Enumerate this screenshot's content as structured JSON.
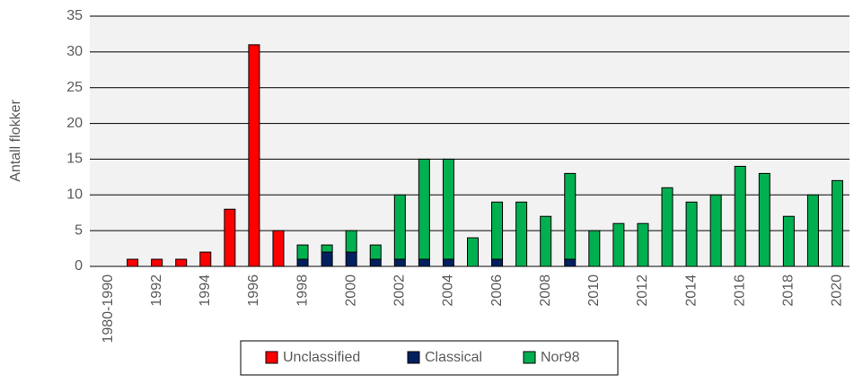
{
  "chart_data": {
    "type": "stacked_bar",
    "y_label": "Antall flokker",
    "categories": [
      "1980-1990",
      null,
      "1992",
      null,
      "1994",
      null,
      "1996",
      null,
      "1998",
      null,
      "2000",
      null,
      "2002",
      null,
      "2004",
      null,
      "2006",
      null,
      "2008",
      null,
      "2010",
      null,
      "2012",
      null,
      "2014",
      null,
      "2016",
      null,
      "2018",
      null,
      "2020"
    ],
    "series": [
      {
        "name": "Unclassified",
        "color": "#ff0000",
        "values": [
          0,
          1,
          1,
          1,
          2,
          8,
          31,
          5,
          0,
          0,
          0,
          0,
          0,
          0,
          0,
          0,
          0,
          0,
          0,
          0,
          0,
          0,
          0,
          0,
          0,
          0,
          0,
          0,
          0,
          0,
          0
        ]
      },
      {
        "name": "Classical",
        "color": "#002060",
        "values": [
          0,
          0,
          0,
          0,
          0,
          0,
          0,
          0,
          1,
          2,
          2,
          1,
          1,
          1,
          1,
          0,
          1,
          0,
          0,
          1,
          0,
          0,
          0,
          0,
          0,
          0,
          0,
          0,
          0,
          0,
          0
        ]
      },
      {
        "name": "Nor98",
        "color": "#00b050",
        "values": [
          0,
          0,
          0,
          0,
          0,
          0,
          0,
          0,
          2,
          1,
          3,
          2,
          9,
          14,
          14,
          4,
          8,
          9,
          7,
          12,
          5,
          6,
          6,
          11,
          9,
          10,
          14,
          13,
          7,
          10,
          12
        ]
      }
    ],
    "ylim": [
      0,
      35
    ],
    "yticks": [
      0,
      5,
      10,
      15,
      20,
      25,
      30,
      35
    ],
    "grid": true,
    "legend": "bottom"
  }
}
